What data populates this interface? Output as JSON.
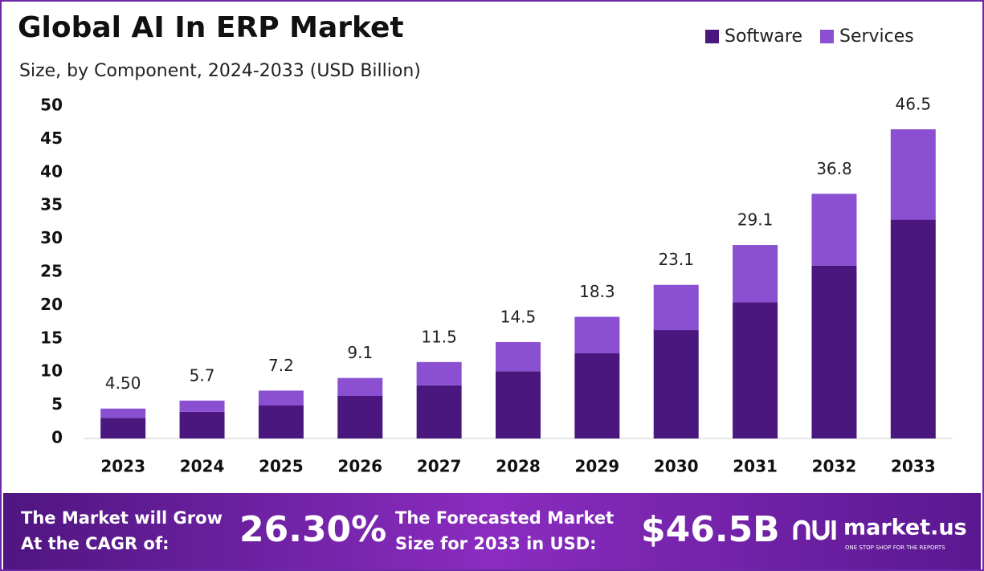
{
  "chart_data": {
    "type": "stacked-bar",
    "title": "Global AI In ERP Market",
    "subtitle": "Size, by Component, 2024-2033 (USD Billion)",
    "categories": [
      "2023",
      "2024",
      "2025",
      "2026",
      "2027",
      "2028",
      "2029",
      "2030",
      "2031",
      "2032",
      "2033"
    ],
    "series": [
      {
        "name": "Software",
        "color": "#4a177f",
        "values": [
          3.1,
          4.0,
          5.0,
          6.4,
          8.0,
          10.1,
          12.8,
          16.3,
          20.5,
          26.0,
          32.9
        ]
      },
      {
        "name": "Services",
        "color": "#8b4fd1",
        "values": [
          1.4,
          1.7,
          2.2,
          2.7,
          3.5,
          4.4,
          5.5,
          6.8,
          8.6,
          10.8,
          13.6
        ]
      }
    ],
    "totals": [
      {
        "value": 4.5,
        "label": "4.50"
      },
      5.7,
      7.2,
      9.1,
      11.5,
      14.5,
      18.3,
      23.1,
      29.1,
      36.8,
      46.5
    ],
    "ylim": [
      0,
      50
    ],
    "yticks": [
      0,
      5,
      10,
      15,
      20,
      25,
      30,
      35,
      40,
      45,
      50
    ],
    "grid": false,
    "legend": "top-right"
  },
  "banner": {
    "cagr_text": [
      "The Market will Grow",
      "At the CAGR of:"
    ],
    "cagr": "26.30%",
    "forecast_text": [
      "The Forecasted Market",
      "Size for 2033 in USD:"
    ],
    "forecast": "$46.5B",
    "brand": "market.us",
    "tagline": "ONE STOP SHOP FOR THE REPORTS"
  }
}
